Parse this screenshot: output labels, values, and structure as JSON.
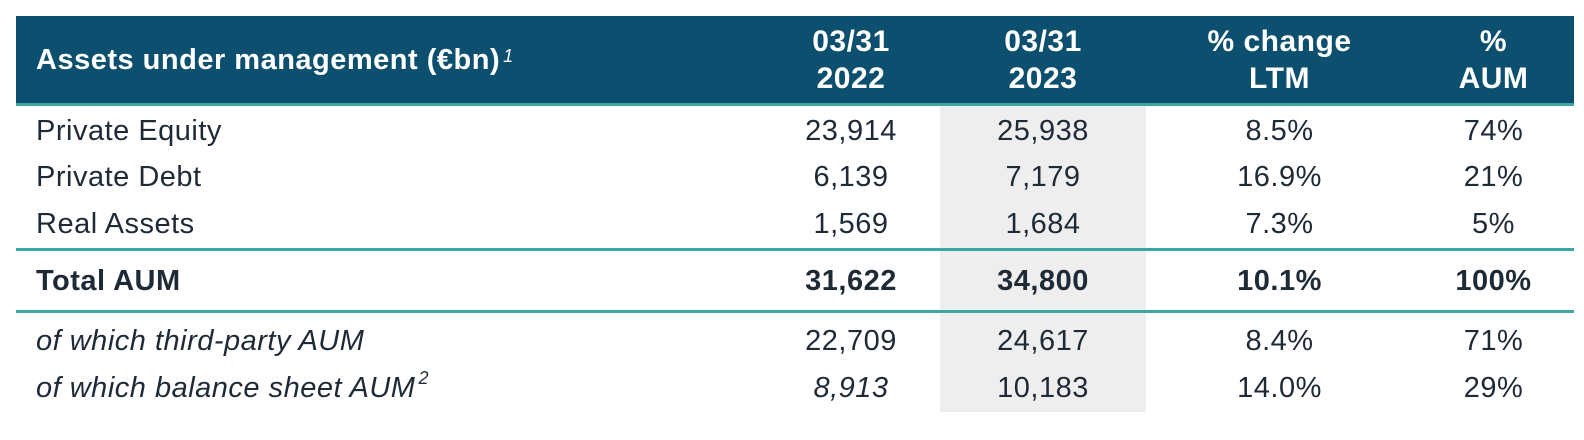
{
  "header": {
    "label": "Assets under management (€bn)",
    "label_footnote": "1",
    "col1": [
      "03/31",
      "2022"
    ],
    "col2": [
      "03/31",
      "2023"
    ],
    "col3": [
      "% change",
      "LTM"
    ],
    "col4": [
      "%",
      "AUM"
    ]
  },
  "rows": [
    {
      "label": "Private Equity",
      "v2022": "23,914",
      "v2023": "25,938",
      "change": "8.5%",
      "aum": "74%"
    },
    {
      "label": "Private Debt",
      "v2022": "6,139",
      "v2023": "7,179",
      "change": "16.9%",
      "aum": "21%"
    },
    {
      "label": "Real Assets",
      "v2022": "1,569",
      "v2023": "1,684",
      "change": "7.3%",
      "aum": "5%"
    }
  ],
  "total": {
    "label": "Total AUM",
    "v2022": "31,622",
    "v2023": "34,800",
    "change": "10.1%",
    "aum": "100%"
  },
  "subrows": [
    {
      "label": "of which third-party AUM",
      "footnote": "",
      "v2022": "22,709",
      "v2023": "24,617",
      "change": "8.4%",
      "aum": "71%"
    },
    {
      "label": "of which balance sheet AUM",
      "footnote": "2",
      "v2022": "8,913",
      "v2023": "10,183",
      "change": "14.0%",
      "aum": "29%"
    }
  ],
  "colors": {
    "header_bg": "#0d4f6e",
    "accent_line": "#3aa7a3",
    "shade": "#eeeeee"
  }
}
